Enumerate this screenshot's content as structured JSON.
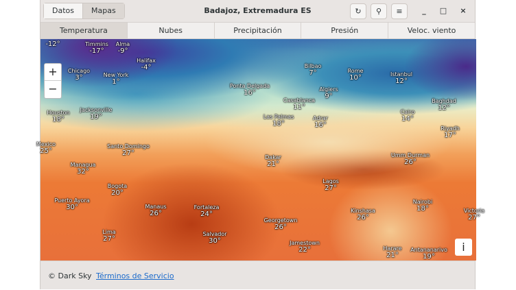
{
  "header": {
    "title": "Badajoz, Extremadura ES",
    "view_switch": [
      "Datos",
      "Mapas"
    ],
    "refresh_icon": "refresh-icon",
    "location_icon": "map-pin-icon",
    "menu_icon": "hamburger-icon",
    "minimize": "_",
    "maximize": "□",
    "close": "×"
  },
  "tabs": [
    {
      "label": "Temperatura",
      "selected": true
    },
    {
      "label": "Nubes"
    },
    {
      "label": "Precipitación"
    },
    {
      "label": "Presión"
    },
    {
      "label": "Veloc. viento"
    }
  ],
  "map": {
    "zoom_in": "+",
    "zoom_out": "−",
    "info": "i",
    "cities": [
      {
        "name": "",
        "temp": "-12°"
      },
      {
        "name": "Timmins",
        "temp": "-17°"
      },
      {
        "name": "Alma",
        "temp": "-9°"
      },
      {
        "name": "Halifax",
        "temp": "-4°"
      },
      {
        "name": "Chicago",
        "temp": "3°"
      },
      {
        "name": "New York",
        "temp": "1°"
      },
      {
        "name": "Ponta Delgada",
        "temp": "16°"
      },
      {
        "name": "Houston",
        "temp": "18°"
      },
      {
        "name": "Jacksonville",
        "temp": "19°"
      },
      {
        "name": "Mexico",
        "temp": "25°"
      },
      {
        "name": "Santo Domingo",
        "temp": "27°"
      },
      {
        "name": "Managua",
        "temp": "32°"
      },
      {
        "name": "Bogota",
        "temp": "20°"
      },
      {
        "name": "Puerto Ayora",
        "temp": "30°"
      },
      {
        "name": "Manaus",
        "temp": "26°"
      },
      {
        "name": "Fortaleza",
        "temp": "24°"
      },
      {
        "name": "Lima",
        "temp": "27°"
      },
      {
        "name": "Salvador",
        "temp": "30°"
      },
      {
        "name": "Bilbao",
        "temp": "7°"
      },
      {
        "name": "Rome",
        "temp": "10°"
      },
      {
        "name": "Istanbul",
        "temp": "12°"
      },
      {
        "name": "Algiers",
        "temp": "9°"
      },
      {
        "name": "Casablanca",
        "temp": "11°"
      },
      {
        "name": "Baghdad",
        "temp": "12°"
      },
      {
        "name": "Cairo",
        "temp": "14°"
      },
      {
        "name": "Las Palmas",
        "temp": "18°"
      },
      {
        "name": "Adrar",
        "temp": "16°"
      },
      {
        "name": "Riyadh",
        "temp": "17°"
      },
      {
        "name": "Dakar",
        "temp": "21°"
      },
      {
        "name": "Umm Durman",
        "temp": "26°"
      },
      {
        "name": "Lagos",
        "temp": "27°"
      },
      {
        "name": "Nairobi",
        "temp": "18°"
      },
      {
        "name": "Kinshasa",
        "temp": "26°"
      },
      {
        "name": "Georgetown",
        "temp": "26°"
      },
      {
        "name": "Victoria",
        "temp": "27°"
      },
      {
        "name": "Jamestown",
        "temp": "22°"
      },
      {
        "name": "Harare",
        "temp": "21°"
      },
      {
        "name": "Antananarivo",
        "temp": "19°"
      }
    ]
  },
  "footer": {
    "copyright": "© Dark Sky",
    "terms_link": "Términos de Servicio"
  }
}
